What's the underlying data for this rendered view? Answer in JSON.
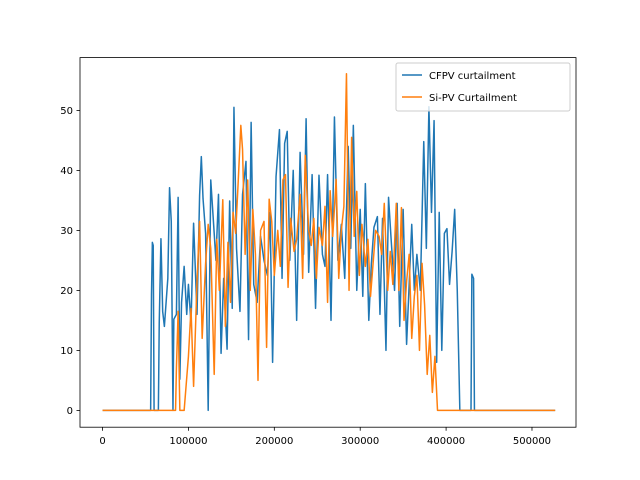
{
  "chart_data": {
    "type": "line",
    "title": "",
    "xlabel": "",
    "ylabel": "",
    "xlim": [
      -26250,
      551250
    ],
    "ylim": [
      -2.8,
      58.8
    ],
    "x_ticks": [
      0,
      100000,
      200000,
      300000,
      400000,
      500000
    ],
    "x_tick_labels": [
      "0",
      "100000",
      "200000",
      "300000",
      "400000",
      "500000"
    ],
    "y_ticks": [
      0,
      10,
      20,
      30,
      40,
      50
    ],
    "y_tick_labels": [
      "0",
      "10",
      "20",
      "30",
      "40",
      "50"
    ],
    "grid": false,
    "legend_position": "upper right",
    "legend": [
      "CFPV curtailment",
      "Si-PV Curtailment"
    ],
    "series": [
      {
        "name": "CFPV curtailment",
        "color": "#1f77b4",
        "data": [
          [
            0,
            0
          ],
          [
            56000,
            0
          ],
          [
            57000,
            19.3
          ],
          [
            58000,
            28.0
          ],
          [
            59000,
            27.5
          ],
          [
            60000,
            0
          ],
          [
            65000,
            0
          ],
          [
            66000,
            14.5
          ],
          [
            68000,
            28.6
          ],
          [
            70000,
            16.5
          ],
          [
            72000,
            14.0
          ],
          [
            74000,
            18.0
          ],
          [
            76000,
            22.0
          ],
          [
            78000,
            37.1
          ],
          [
            80000,
            31.5
          ],
          [
            82000,
            0
          ],
          [
            83000,
            15.2
          ],
          [
            86000,
            16.0
          ],
          [
            88000,
            35.5
          ],
          [
            90000,
            5.2
          ],
          [
            92000,
            18.0
          ],
          [
            95000,
            24.0
          ],
          [
            98000,
            16.0
          ],
          [
            100000,
            21.0
          ],
          [
            103000,
            14.5
          ],
          [
            106000,
            31.2
          ],
          [
            110000,
            16.0
          ],
          [
            113000,
            35.8
          ],
          [
            115000,
            42.3
          ],
          [
            117000,
            35.3
          ],
          [
            120000,
            29.5
          ],
          [
            123000,
            0.0
          ],
          [
            126000,
            38.4
          ],
          [
            130000,
            29.5
          ],
          [
            132000,
            25.0
          ],
          [
            135000,
            36.0
          ],
          [
            138000,
            9.5
          ],
          [
            141000,
            22.0
          ],
          [
            145000,
            10.2
          ],
          [
            148000,
            34.9
          ],
          [
            151000,
            17.0
          ],
          [
            153000,
            50.5
          ],
          [
            156000,
            27.0
          ],
          [
            160000,
            16.5
          ],
          [
            163000,
            36.0
          ],
          [
            167000,
            41.5
          ],
          [
            170000,
            11.8
          ],
          [
            173000,
            48.0
          ],
          [
            176000,
            21.0
          ],
          [
            180000,
            18.0
          ],
          [
            184000,
            29.0
          ],
          [
            188000,
            25.0
          ],
          [
            192000,
            22.5
          ],
          [
            195000,
            33.0
          ],
          [
            198000,
            8.0
          ],
          [
            202000,
            39.0
          ],
          [
            206000,
            46.8
          ],
          [
            209000,
            22.0
          ],
          [
            212000,
            44.5
          ],
          [
            215000,
            46.5
          ],
          [
            218000,
            25.0
          ],
          [
            222000,
            40.0
          ],
          [
            226000,
            15.0
          ],
          [
            230000,
            43.0
          ],
          [
            234000,
            26.0
          ],
          [
            237000,
            48.6
          ],
          [
            240000,
            23.0
          ],
          [
            244000,
            39.3
          ],
          [
            248000,
            17.0
          ],
          [
            252000,
            39.2
          ],
          [
            256000,
            26.0
          ],
          [
            259000,
            24.0
          ],
          [
            262000,
            39.3
          ],
          [
            266000,
            15.0
          ],
          [
            270000,
            48.9
          ],
          [
            274000,
            25.0
          ],
          [
            278000,
            31.0
          ],
          [
            282000,
            22.0
          ],
          [
            286000,
            44.0
          ],
          [
            289000,
            27.0
          ],
          [
            292000,
            47.5
          ],
          [
            296000,
            20.0
          ],
          [
            300000,
            33.5
          ],
          [
            303000,
            19.0
          ],
          [
            306000,
            37.8
          ],
          [
            310000,
            15.0
          ],
          [
            313000,
            24.5
          ],
          [
            316000,
            30.5
          ],
          [
            320000,
            32.3
          ],
          [
            323000,
            16.0
          ],
          [
            326000,
            32.0
          ],
          [
            330000,
            10.0
          ],
          [
            333000,
            35.5
          ],
          [
            336000,
            28.5
          ],
          [
            340000,
            20.0
          ],
          [
            343000,
            34.5
          ],
          [
            346000,
            14.0
          ],
          [
            350000,
            33.5
          ],
          [
            354000,
            11.0
          ],
          [
            357000,
            21.0
          ],
          [
            360000,
            31.0
          ],
          [
            363000,
            20.0
          ],
          [
            366000,
            26.0
          ],
          [
            370000,
            20.0
          ],
          [
            374000,
            44.8
          ],
          [
            377000,
            27.0
          ],
          [
            380000,
            50.6
          ],
          [
            383000,
            33.0
          ],
          [
            386000,
            48.3
          ],
          [
            389000,
            8.0
          ],
          [
            392000,
            33.0
          ],
          [
            395000,
            10.0
          ],
          [
            398000,
            29.5
          ],
          [
            401000,
            30.3
          ],
          [
            404000,
            21.0
          ],
          [
            407000,
            26.5
          ],
          [
            410000,
            33.5
          ],
          [
            413000,
            20.0
          ],
          [
            416000,
            0
          ],
          [
            429000,
            0
          ],
          [
            430000,
            22.7
          ],
          [
            432000,
            22.0
          ],
          [
            433000,
            0
          ],
          [
            527000,
            0
          ]
        ]
      },
      {
        "name": "Si-PV Curtailment",
        "color": "#ff7f0e",
        "data": [
          [
            0,
            0
          ],
          [
            85000,
            0
          ],
          [
            86000,
            7.0
          ],
          [
            88000,
            16.5
          ],
          [
            90000,
            0
          ],
          [
            95000,
            0
          ],
          [
            100000,
            9.0
          ],
          [
            103000,
            17.0
          ],
          [
            106000,
            4.0
          ],
          [
            110000,
            21.5
          ],
          [
            113000,
            31.5
          ],
          [
            116000,
            12.0
          ],
          [
            120000,
            24.5
          ],
          [
            123000,
            31.0
          ],
          [
            126000,
            27.0
          ],
          [
            130000,
            6.0
          ],
          [
            133000,
            28.5
          ],
          [
            136000,
            20.0
          ],
          [
            140000,
            35.1
          ],
          [
            143000,
            14.0
          ],
          [
            146000,
            28.0
          ],
          [
            149000,
            18.0
          ],
          [
            152000,
            33.0
          ],
          [
            155000,
            29.5
          ],
          [
            158000,
            38.3
          ],
          [
            161000,
            47.5
          ],
          [
            163000,
            43.5
          ],
          [
            166000,
            26.0
          ],
          [
            169000,
            38.4
          ],
          [
            172000,
            20.0
          ],
          [
            175000,
            33.5
          ],
          [
            178000,
            26.0
          ],
          [
            181000,
            5.0
          ],
          [
            184000,
            30.0
          ],
          [
            188000,
            31.5
          ],
          [
            191000,
            10.5
          ],
          [
            194000,
            35.2
          ],
          [
            197000,
            31.5
          ],
          [
            200000,
            22.5
          ],
          [
            204000,
            30.0
          ],
          [
            207000,
            24.0
          ],
          [
            210000,
            38.4
          ],
          [
            213000,
            39.3
          ],
          [
            216000,
            20.5
          ],
          [
            219000,
            32.0
          ],
          [
            223000,
            26.5
          ],
          [
            226000,
            28.5
          ],
          [
            230000,
            36.0
          ],
          [
            233000,
            22.0
          ],
          [
            236000,
            42.5
          ],
          [
            240000,
            30.0
          ],
          [
            243000,
            27.5
          ],
          [
            246000,
            32.0
          ],
          [
            249000,
            22.0
          ],
          [
            252000,
            30.5
          ],
          [
            256000,
            27.5
          ],
          [
            259000,
            34.0
          ],
          [
            262000,
            18.0
          ],
          [
            265000,
            36.6
          ],
          [
            268000,
            29.0
          ],
          [
            272000,
            38.5
          ],
          [
            275000,
            22.0
          ],
          [
            278000,
            30.0
          ],
          [
            281000,
            34.0
          ],
          [
            284000,
            56.1
          ],
          [
            287000,
            20.0
          ],
          [
            290000,
            45.5
          ],
          [
            293000,
            29.0
          ],
          [
            296000,
            36.5
          ],
          [
            299000,
            22.5
          ],
          [
            302000,
            31.0
          ],
          [
            306000,
            24.0
          ],
          [
            309000,
            28.5
          ],
          [
            312000,
            19.0
          ],
          [
            315000,
            24.5
          ],
          [
            318000,
            30.0
          ],
          [
            322000,
            29.0
          ],
          [
            325000,
            26.0
          ],
          [
            328000,
            34.5
          ],
          [
            332000,
            20.0
          ],
          [
            335000,
            26.5
          ],
          [
            338000,
            21.0
          ],
          [
            342000,
            34.5
          ],
          [
            345000,
            20.0
          ],
          [
            348000,
            33.8
          ],
          [
            351000,
            15.0
          ],
          [
            354000,
            21.5
          ],
          [
            357000,
            26.0
          ],
          [
            360000,
            12.0
          ],
          [
            363000,
            19.0
          ],
          [
            366000,
            22.5
          ],
          [
            369000,
            10.0
          ],
          [
            372000,
            24.5
          ],
          [
            375000,
            17.5
          ],
          [
            378000,
            6.0
          ],
          [
            381000,
            12.5
          ],
          [
            384000,
            3.0
          ],
          [
            387000,
            9.0
          ],
          [
            390000,
            0
          ],
          [
            527000,
            0
          ]
        ]
      }
    ]
  },
  "colors": {
    "cfpv": "#1f77b4",
    "sipv": "#ff7f0e",
    "axis": "#000000",
    "legend_border": "#cccccc"
  }
}
